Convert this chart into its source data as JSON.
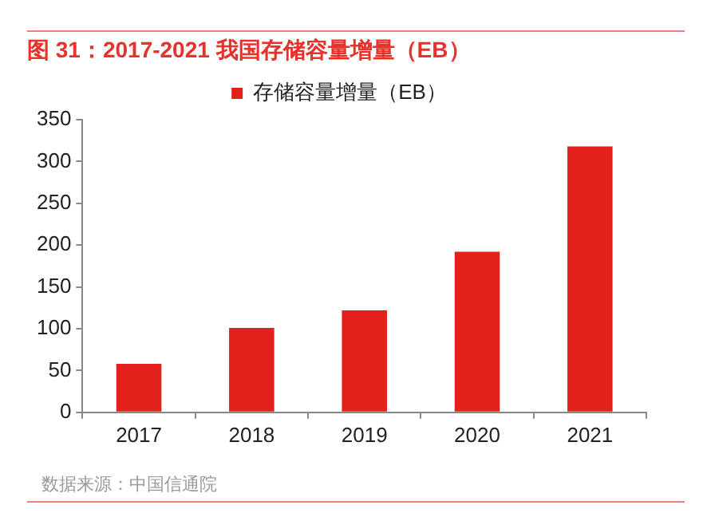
{
  "chart_data": {
    "type": "bar",
    "title": "图 31：2017-2021 我国存储容量增量（EB）",
    "categories": [
      "2017",
      "2018",
      "2019",
      "2020",
      "2021"
    ],
    "series": [
      {
        "name": "存储容量增量（EB）",
        "color": "#e3201b",
        "values": [
          58,
          101,
          122,
          192,
          318
        ]
      }
    ],
    "ylim": [
      0,
      350
    ],
    "yticks": [
      0,
      50,
      100,
      150,
      200,
      250,
      300,
      350
    ],
    "grid": false,
    "legend": "top",
    "annotations": [
      "数据来源：中国信通院"
    ]
  }
}
